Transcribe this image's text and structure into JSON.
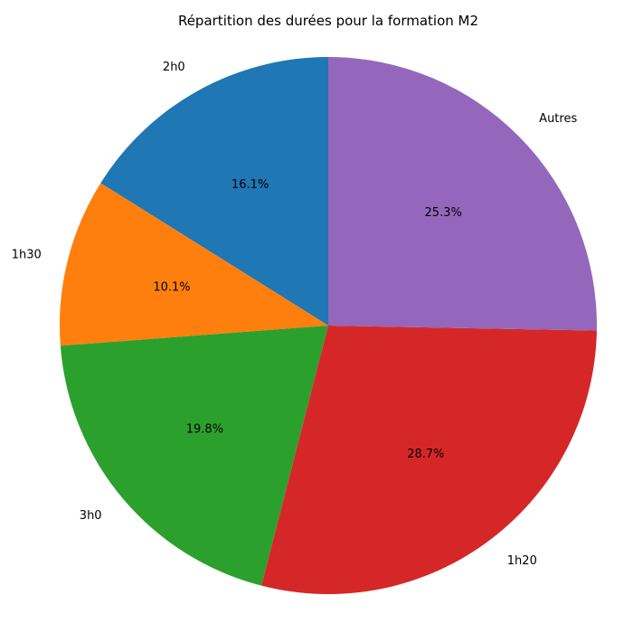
{
  "chart_data": {
    "type": "pie",
    "title": "Répartition des durées pour la formation M2",
    "start_angle_deg": 90,
    "direction": "counterclockwise",
    "slices": [
      {
        "label": "2h0",
        "value": 16.1,
        "pct_label": "16.1%",
        "color": "#1f77b4"
      },
      {
        "label": "1h30",
        "value": 10.1,
        "pct_label": "10.1%",
        "color": "#ff7f0e"
      },
      {
        "label": "3h0",
        "value": 19.8,
        "pct_label": "19.8%",
        "color": "#2ca02c"
      },
      {
        "label": "1h20",
        "value": 28.7,
        "pct_label": "28.7%",
        "color": "#d62728"
      },
      {
        "label": "Autres",
        "value": 25.3,
        "pct_label": "25.3%",
        "color": "#9467bd"
      }
    ]
  }
}
